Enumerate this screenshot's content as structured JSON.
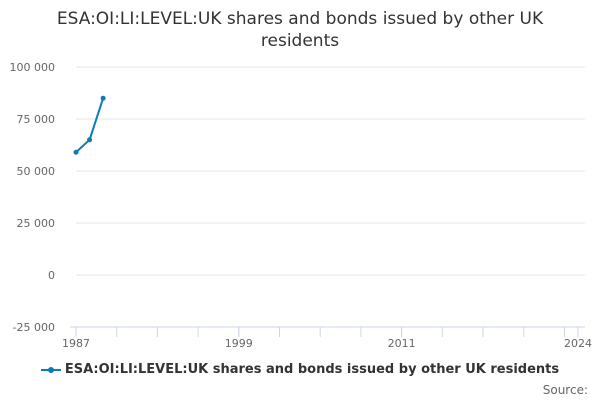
{
  "chart_data": {
    "type": "line",
    "title": "ESA:OI:LI:LEVEL:UK shares and bonds issued by other UK residents",
    "xlabel": "",
    "ylabel": "",
    "x_ticks": [
      "1987",
      "1999",
      "2011",
      "2024"
    ],
    "xlim": [
      1987,
      2024
    ],
    "ylim": [
      -25000,
      100000
    ],
    "y_ticks": [
      -25000,
      0,
      25000,
      50000,
      75000,
      100000
    ],
    "y_tick_labels": [
      "-25 000",
      "0",
      "25 000",
      "50 000",
      "75 000",
      "100 000"
    ],
    "grid": true,
    "legend": "bottom",
    "series": [
      {
        "name": "ESA:OI:LI:LEVEL:UK shares and bonds issued by other UK residents",
        "color": "#0c7cb3",
        "x": [
          1987,
          1988,
          1989
        ],
        "values": [
          59000,
          65000,
          85000
        ]
      }
    ]
  },
  "footer": {
    "source_label": "Source:"
  }
}
